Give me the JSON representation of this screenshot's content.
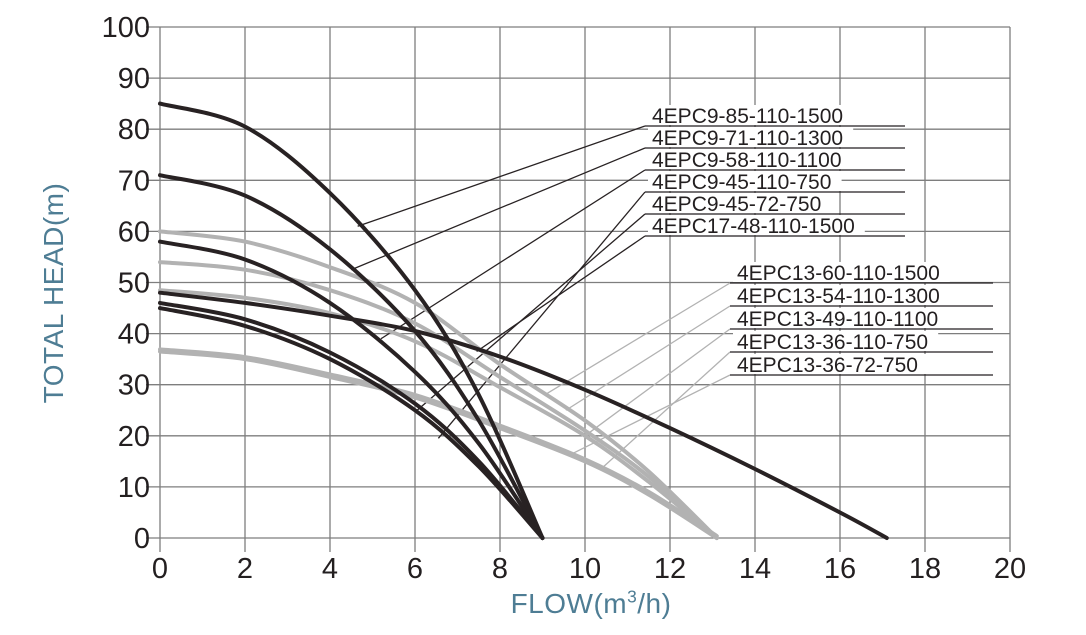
{
  "colors": {
    "dark_curve": "#282223",
    "gray_curve": "#b2b2b2",
    "grid": "#7e7e7e",
    "axis_title": "#4e7d94",
    "tick_text": "#231f20",
    "label_text": "#231f20",
    "background": "#ffffff"
  },
  "chart_data": {
    "type": "line",
    "title": "",
    "xlabel": "FLOW(m³/h)",
    "xlabel_parts": {
      "pre": "FLOW(m",
      "sup": "3",
      "post": "/h)"
    },
    "ylabel": "TOTAL HEAD(m)",
    "xlim": [
      0,
      20
    ],
    "ylim": [
      0,
      100
    ],
    "x_ticks": [
      0,
      2,
      4,
      6,
      8,
      10,
      12,
      14,
      16,
      18,
      20
    ],
    "y_ticks": [
      0,
      10,
      20,
      30,
      40,
      50,
      60,
      70,
      80,
      90,
      100
    ],
    "grid": "both",
    "legend_position": "inline-callouts",
    "series": [
      {
        "name": "4EPC9-85-110-1500",
        "color_role": "dark",
        "callout_group": "dark",
        "callout_row": 0,
        "leader_point": [
          4.65,
          61
        ],
        "points": [
          [
            0,
            85
          ],
          [
            2,
            80.5
          ],
          [
            4,
            67.5
          ],
          [
            6,
            48.5
          ],
          [
            7.5,
            28
          ],
          [
            9,
            0
          ]
        ]
      },
      {
        "name": "4EPC9-71-110-1300",
        "color_role": "dark",
        "callout_group": "dark",
        "callout_row": 1,
        "leader_point": [
          4.5,
          52.5
        ],
        "points": [
          [
            0,
            71
          ],
          [
            2,
            67
          ],
          [
            4,
            56.5
          ],
          [
            6,
            40.5
          ],
          [
            7.5,
            23
          ],
          [
            9,
            0
          ]
        ]
      },
      {
        "name": "4EPC9-58-110-1100",
        "color_role": "dark",
        "callout_group": "dark",
        "callout_row": 2,
        "leader_point": [
          5.2,
          39
        ],
        "points": [
          [
            0,
            58
          ],
          [
            2,
            54.5
          ],
          [
            4,
            46
          ],
          [
            6,
            32.5
          ],
          [
            7.5,
            18.5
          ],
          [
            9,
            0
          ]
        ]
      },
      {
        "name": "4EPC9-45-110-750",
        "color_role": "dark",
        "callout_group": "dark",
        "callout_row": 3,
        "leader_point": [
          6.55,
          19.5
        ],
        "points": [
          [
            0,
            45
          ],
          [
            2,
            41.5
          ],
          [
            4,
            35
          ],
          [
            6,
            25
          ],
          [
            7.5,
            14
          ],
          [
            9,
            0
          ]
        ]
      },
      {
        "name": "4EPC9-45-72-750",
        "color_role": "dark",
        "callout_group": "dark",
        "callout_row": 4,
        "leader_point": [
          6.05,
          25
        ],
        "points": [
          [
            0,
            46
          ],
          [
            2,
            42.8
          ],
          [
            4,
            36.3
          ],
          [
            6,
            26.3
          ],
          [
            7.5,
            15
          ],
          [
            9,
            0
          ]
        ]
      },
      {
        "name": "4EPC17-48-110-1500",
        "color_role": "dark",
        "callout_group": "dark",
        "callout_row": 5,
        "leader_point": [
          7.45,
          36.5
        ],
        "points": [
          [
            0,
            48
          ],
          [
            2,
            46
          ],
          [
            4,
            43.5
          ],
          [
            6,
            40.5
          ],
          [
            8,
            35.5
          ],
          [
            10,
            29
          ],
          [
            12,
            21.5
          ],
          [
            14,
            13.5
          ],
          [
            16,
            5
          ],
          [
            17.1,
            0
          ]
        ]
      },
      {
        "name": "4EPC13-60-110-1500",
        "color_role": "gray",
        "callout_group": "gray",
        "callout_row": 0,
        "leader_point": [
          9.05,
          28
        ],
        "points": [
          [
            0,
            60
          ],
          [
            2,
            58
          ],
          [
            4,
            53
          ],
          [
            6,
            46
          ],
          [
            8,
            34
          ],
          [
            10,
            23
          ],
          [
            11.5,
            13
          ],
          [
            13.1,
            0
          ]
        ]
      },
      {
        "name": "4EPC13-54-110-1300",
        "color_role": "gray",
        "callout_group": "gray",
        "callout_row": 1,
        "leader_point": [
          9.55,
          25
        ],
        "points": [
          [
            0,
            54
          ],
          [
            2,
            52.5
          ],
          [
            4,
            48.5
          ],
          [
            6,
            42
          ],
          [
            8,
            31.5
          ],
          [
            10,
            21
          ],
          [
            11.5,
            12
          ],
          [
            13.1,
            0
          ]
        ]
      },
      {
        "name": "4EPC13-49-110-1100",
        "color_role": "gray",
        "callout_group": "gray",
        "callout_row": 2,
        "leader_point": [
          10.0,
          20
        ],
        "points": [
          [
            0,
            48.5
          ],
          [
            2,
            47
          ],
          [
            4,
            44
          ],
          [
            6,
            38.5
          ],
          [
            8,
            29.5
          ],
          [
            10,
            20
          ],
          [
            11.5,
            11
          ],
          [
            13.1,
            0
          ]
        ]
      },
      {
        "name": "4EPC13-36-110-750",
        "color_role": "gray",
        "callout_group": "gray",
        "callout_row": 3,
        "leader_point": [
          10.35,
          13.3
        ],
        "points": [
          [
            0,
            36.5
          ],
          [
            2,
            35
          ],
          [
            4,
            31.5
          ],
          [
            6,
            27.5
          ],
          [
            8,
            21.5
          ],
          [
            10,
            15
          ],
          [
            11.5,
            8.5
          ],
          [
            13.1,
            0
          ]
        ]
      },
      {
        "name": "4EPC13-36-72-750",
        "color_role": "gray",
        "callout_group": "gray",
        "callout_row": 4,
        "leader_point": [
          9.7,
          16.5
        ],
        "points": [
          [
            0,
            36.9
          ],
          [
            2,
            35.4
          ],
          [
            4,
            32
          ],
          [
            6,
            28
          ],
          [
            8,
            22
          ],
          [
            10,
            15.4
          ],
          [
            11.5,
            9
          ],
          [
            13.1,
            0.4
          ]
        ]
      }
    ]
  }
}
